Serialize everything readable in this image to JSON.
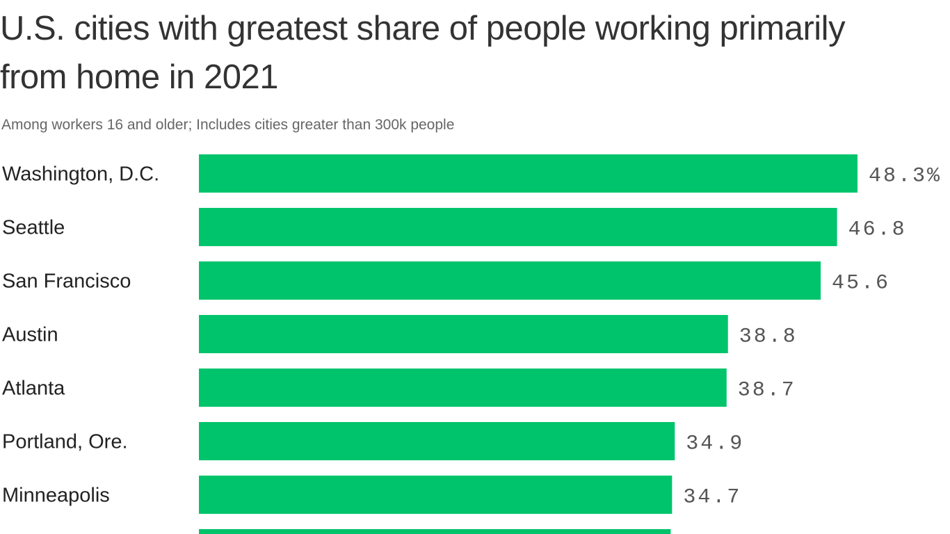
{
  "chart_data": {
    "type": "bar",
    "orientation": "horizontal",
    "title": "U.S. cities with greatest share of people working primarily from home in 2021",
    "subtitle": "Among workers 16 and older; Includes cities greater than 300k people",
    "categories": [
      "Washington, D.C.",
      "Seattle",
      "San Francisco",
      "Austin",
      "Atlanta",
      "Portland, Ore.",
      "Minneapolis",
      ""
    ],
    "values": [
      48.3,
      46.8,
      45.6,
      38.8,
      38.7,
      34.9,
      34.7,
      34.6
    ],
    "labels": [
      "48.3%",
      "46.8",
      "45.6",
      "38.8",
      "38.7",
      "34.9",
      "34.7",
      ""
    ],
    "unit": "%",
    "xlim": [
      0,
      48.3
    ],
    "grid": false,
    "bar_color": "#00c46b"
  }
}
